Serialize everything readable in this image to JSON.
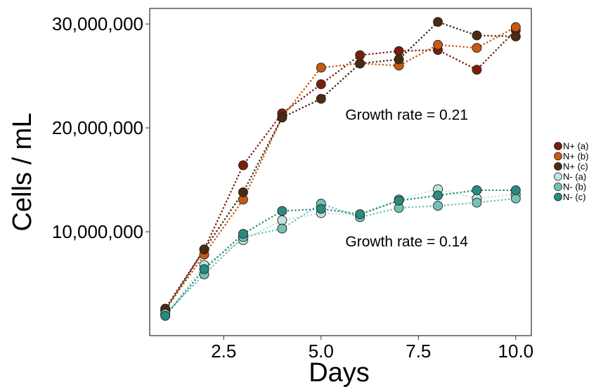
{
  "chart_data": {
    "type": "line",
    "xlabel": "Days",
    "ylabel": "Cells / mL",
    "xlim": [
      0.6,
      10.4
    ],
    "ylim": [
      0,
      31500000
    ],
    "x_ticks": [
      2.5,
      5.0,
      7.5,
      10.0
    ],
    "x_tick_labels": [
      "2.5",
      "5.0",
      "7.5",
      "10.0"
    ],
    "y_ticks": [
      10000000,
      20000000,
      30000000
    ],
    "y_tick_labels": [
      "10,000,000",
      "20,000,000",
      "30,000,000"
    ],
    "grid": false,
    "legend_position": "right",
    "annotations": [
      {
        "text": "Growth rate = 0.21",
        "x": 7.2,
        "y": 20800000
      },
      {
        "text": "Growth rate = 0.14",
        "x": 7.2,
        "y": 8600000
      }
    ],
    "x": [
      1,
      2,
      3,
      4,
      5,
      6,
      7,
      8,
      9,
      10
    ],
    "series": [
      {
        "name": "N+ (a)",
        "color": "#7a1e0c",
        "values": [
          2400000,
          8300000,
          16400000,
          21400000,
          24200000,
          27000000,
          27400000,
          27500000,
          25600000,
          29400000
        ]
      },
      {
        "name": "N+ (b)",
        "color": "#c55a11",
        "values": [
          2500000,
          7800000,
          13100000,
          21000000,
          25800000,
          26200000,
          26000000,
          28000000,
          27700000,
          29700000
        ]
      },
      {
        "name": "N+ (c)",
        "color": "#4a2a10",
        "values": [
          2600000,
          8300000,
          13800000,
          21000000,
          22800000,
          26200000,
          26600000,
          30200000,
          28900000,
          28800000
        ]
      },
      {
        "name": "N- (a)",
        "color": "#bfe4df",
        "values": [
          2000000,
          6800000,
          9200000,
          11100000,
          11800000,
          11600000,
          13100000,
          14100000,
          13200000,
          13600000
        ]
      },
      {
        "name": "N- (b)",
        "color": "#73c2b3",
        "values": [
          2100000,
          5900000,
          9500000,
          10300000,
          12700000,
          11400000,
          12300000,
          12500000,
          12800000,
          13200000
        ]
      },
      {
        "name": "N- (c)",
        "color": "#2a8a7e",
        "values": [
          1900000,
          6400000,
          9800000,
          12000000,
          12200000,
          11700000,
          13000000,
          13500000,
          14000000,
          14000000
        ]
      }
    ]
  }
}
